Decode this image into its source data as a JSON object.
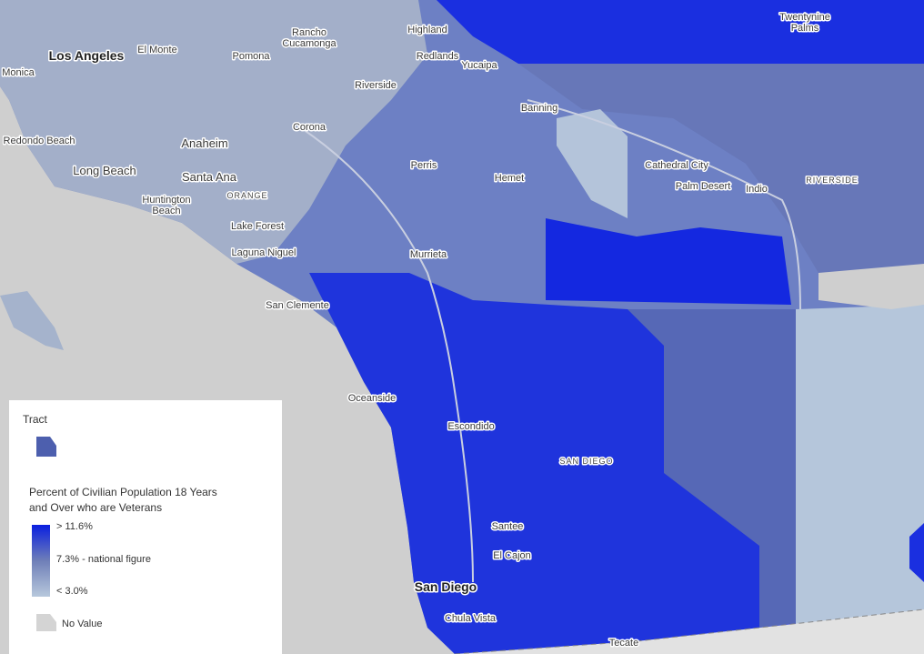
{
  "places": [
    [
      "Los Angeles"
    ],
    [
      "El Monte"
    ],
    [
      "Rancho",
      "Cucamonga"
    ],
    [
      "Highland"
    ],
    [
      "Twentynine",
      "Palms"
    ],
    [
      "Monica"
    ],
    [
      "Pomona"
    ],
    [
      "Redlands"
    ],
    [
      "Yucaipa"
    ],
    [
      "Riverside"
    ],
    [
      "Banning"
    ],
    [
      "Redondo Beach"
    ],
    [
      "Anaheim"
    ],
    [
      "Corona"
    ],
    [
      "Long Beach"
    ],
    [
      "Santa Ana"
    ],
    [
      "Perris"
    ],
    [
      "Hemet"
    ],
    [
      "Cathedral City"
    ],
    [
      "Palm Desert"
    ],
    [
      "Indio"
    ],
    [
      "RIVERSIDE"
    ],
    [
      "Huntington",
      "Beach"
    ],
    [
      "ORANGE"
    ],
    [
      "Lake Forest"
    ],
    [
      "Murrieta"
    ],
    [
      "Laguna Niguel"
    ],
    [
      "San Clemente"
    ],
    [
      "Oceanside"
    ],
    [
      "Escondido"
    ],
    [
      "SAN DIEGO"
    ],
    [
      "Santee"
    ],
    [
      "El Cajon"
    ],
    [
      "San Diego"
    ],
    [
      "Chula Vista"
    ],
    [
      "Tecate"
    ]
  ],
  "legend": {
    "layer": "Tract",
    "title": [
      "Percent of Civilian Population 18 Years",
      "and Over who are Veterans"
    ],
    "stops": [
      "> 11.6%",
      "7.3% - national figure",
      "< 3.0%"
    ],
    "no_value": "No Value"
  }
}
